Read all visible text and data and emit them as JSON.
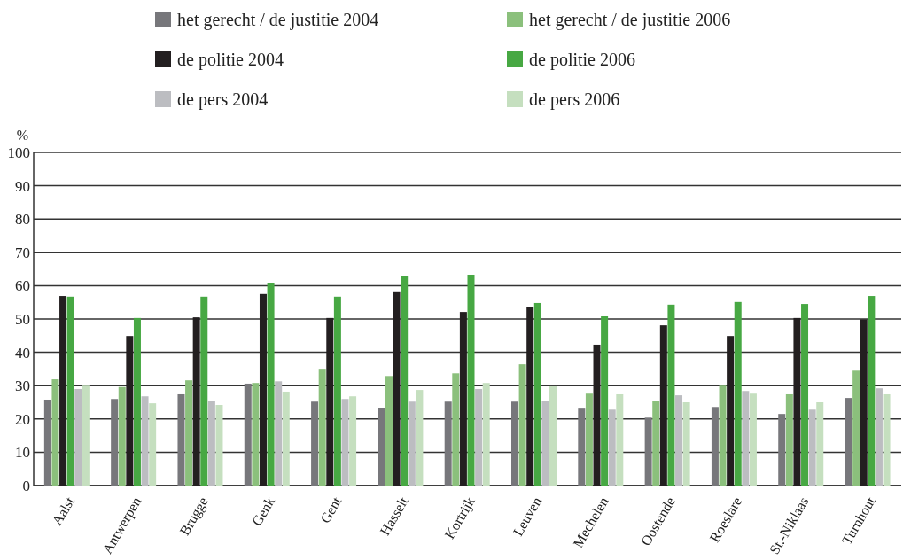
{
  "chart_data": {
    "type": "bar",
    "ylabel": "%",
    "categories": [
      "Aalst",
      "Antwerpen",
      "Brugge",
      "Genk",
      "Gent",
      "Hasselt",
      "Kortrijk",
      "Leuven",
      "Mechelen",
      "Oostende",
      "Roeslare",
      "St.-Niklaas",
      "Turnhout"
    ],
    "series": [
      {
        "name": "het gerecht / de justitie 2004",
        "color": "#77777b",
        "values": [
          25.8,
          26.0,
          27.4,
          30.6,
          25.2,
          23.4,
          25.2,
          25.2,
          23.1,
          20.4,
          23.6,
          21.5,
          26.3
        ]
      },
      {
        "name": "het gerecht / de justitie 2006",
        "color": "#8bc07c",
        "values": [
          31.9,
          29.6,
          31.6,
          30.8,
          34.8,
          32.9,
          33.7,
          36.4,
          27.6,
          25.5,
          30.0,
          27.4,
          34.5
        ]
      },
      {
        "name": "de politie 2004",
        "color": "#231f20",
        "values": [
          56.9,
          44.9,
          50.5,
          57.5,
          50.3,
          58.3,
          52.1,
          53.7,
          42.3,
          48.1,
          44.9,
          50.3,
          49.9
        ]
      },
      {
        "name": "de politie 2006",
        "color": "#47a843",
        "values": [
          56.7,
          50.3,
          56.7,
          60.9,
          56.7,
          62.8,
          63.3,
          54.8,
          50.8,
          54.3,
          55.1,
          54.5,
          56.9
        ]
      },
      {
        "name": "de pers 2004",
        "color": "#bcbdc1",
        "values": [
          29.0,
          26.8,
          25.5,
          31.3,
          26.0,
          25.2,
          29.0,
          25.5,
          22.8,
          27.1,
          28.4,
          22.8,
          29.2
        ]
      },
      {
        "name": "de pers 2006",
        "color": "#c5dfbf",
        "values": [
          30.0,
          24.7,
          24.2,
          28.2,
          26.8,
          28.7,
          30.8,
          29.8,
          27.4,
          25.0,
          27.6,
          25.0,
          27.4
        ]
      }
    ],
    "ylim": [
      0,
      100
    ],
    "yticks": [
      0,
      10,
      20,
      30,
      40,
      50,
      60,
      70,
      80,
      90,
      100
    ],
    "grid": "y",
    "legend": "top"
  }
}
